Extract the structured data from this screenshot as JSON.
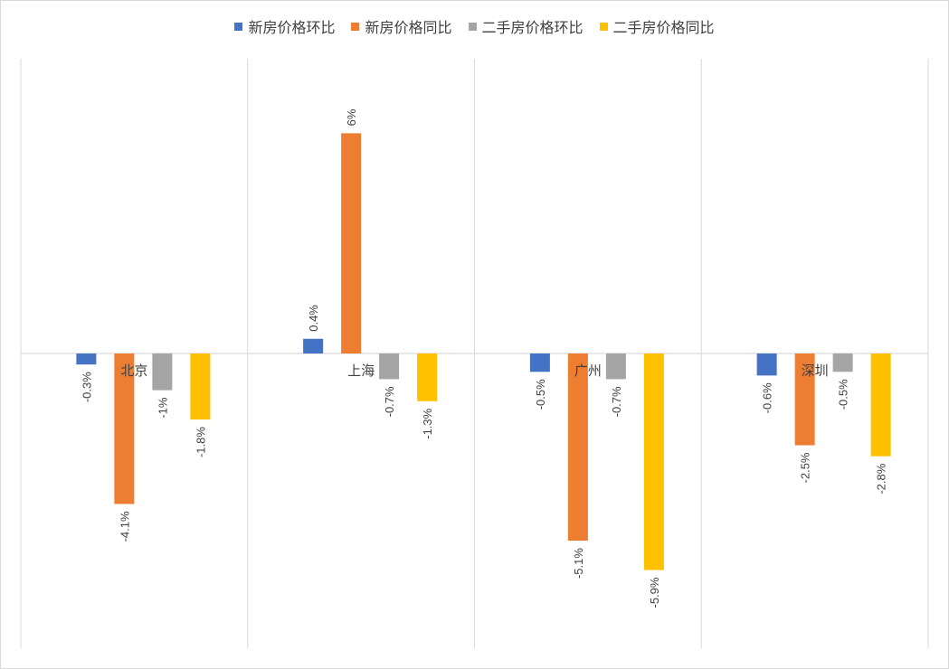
{
  "chart_data": {
    "type": "bar",
    "title": "",
    "xlabel": "",
    "ylabel": "",
    "categories": [
      "北京",
      "上海",
      "广州",
      "深圳"
    ],
    "series": [
      {
        "name": "新房价格环比",
        "color": "#4472C4",
        "values": [
          -0.3,
          0.4,
          -0.5,
          -0.6
        ],
        "labels": [
          "-0.3%",
          "0.4%",
          "-0.5%",
          "-0.6%"
        ]
      },
      {
        "name": "新房价格同比",
        "color": "#ED7D31",
        "values": [
          -4.1,
          6,
          -5.1,
          -2.5
        ],
        "labels": [
          "-4.1%",
          "6%",
          "-5.1%",
          "-2.5%"
        ]
      },
      {
        "name": "二手房价格环比",
        "color": "#A5A5A5",
        "values": [
          -1,
          -0.7,
          -0.7,
          -0.5
        ],
        "labels": [
          "-1%",
          "-0.7%",
          "-0.7%",
          "-0.5%"
        ]
      },
      {
        "name": "二手房价格同比",
        "color": "#FFC000",
        "values": [
          -1.8,
          -1.3,
          -5.9,
          -2.8
        ],
        "labels": [
          "-1.8%",
          "-1.3%",
          "-5.9%",
          "-2.8%"
        ]
      }
    ],
    "ylim": [
      -8,
      8
    ],
    "grid": "vertical category separators",
    "legend": "top-center"
  }
}
